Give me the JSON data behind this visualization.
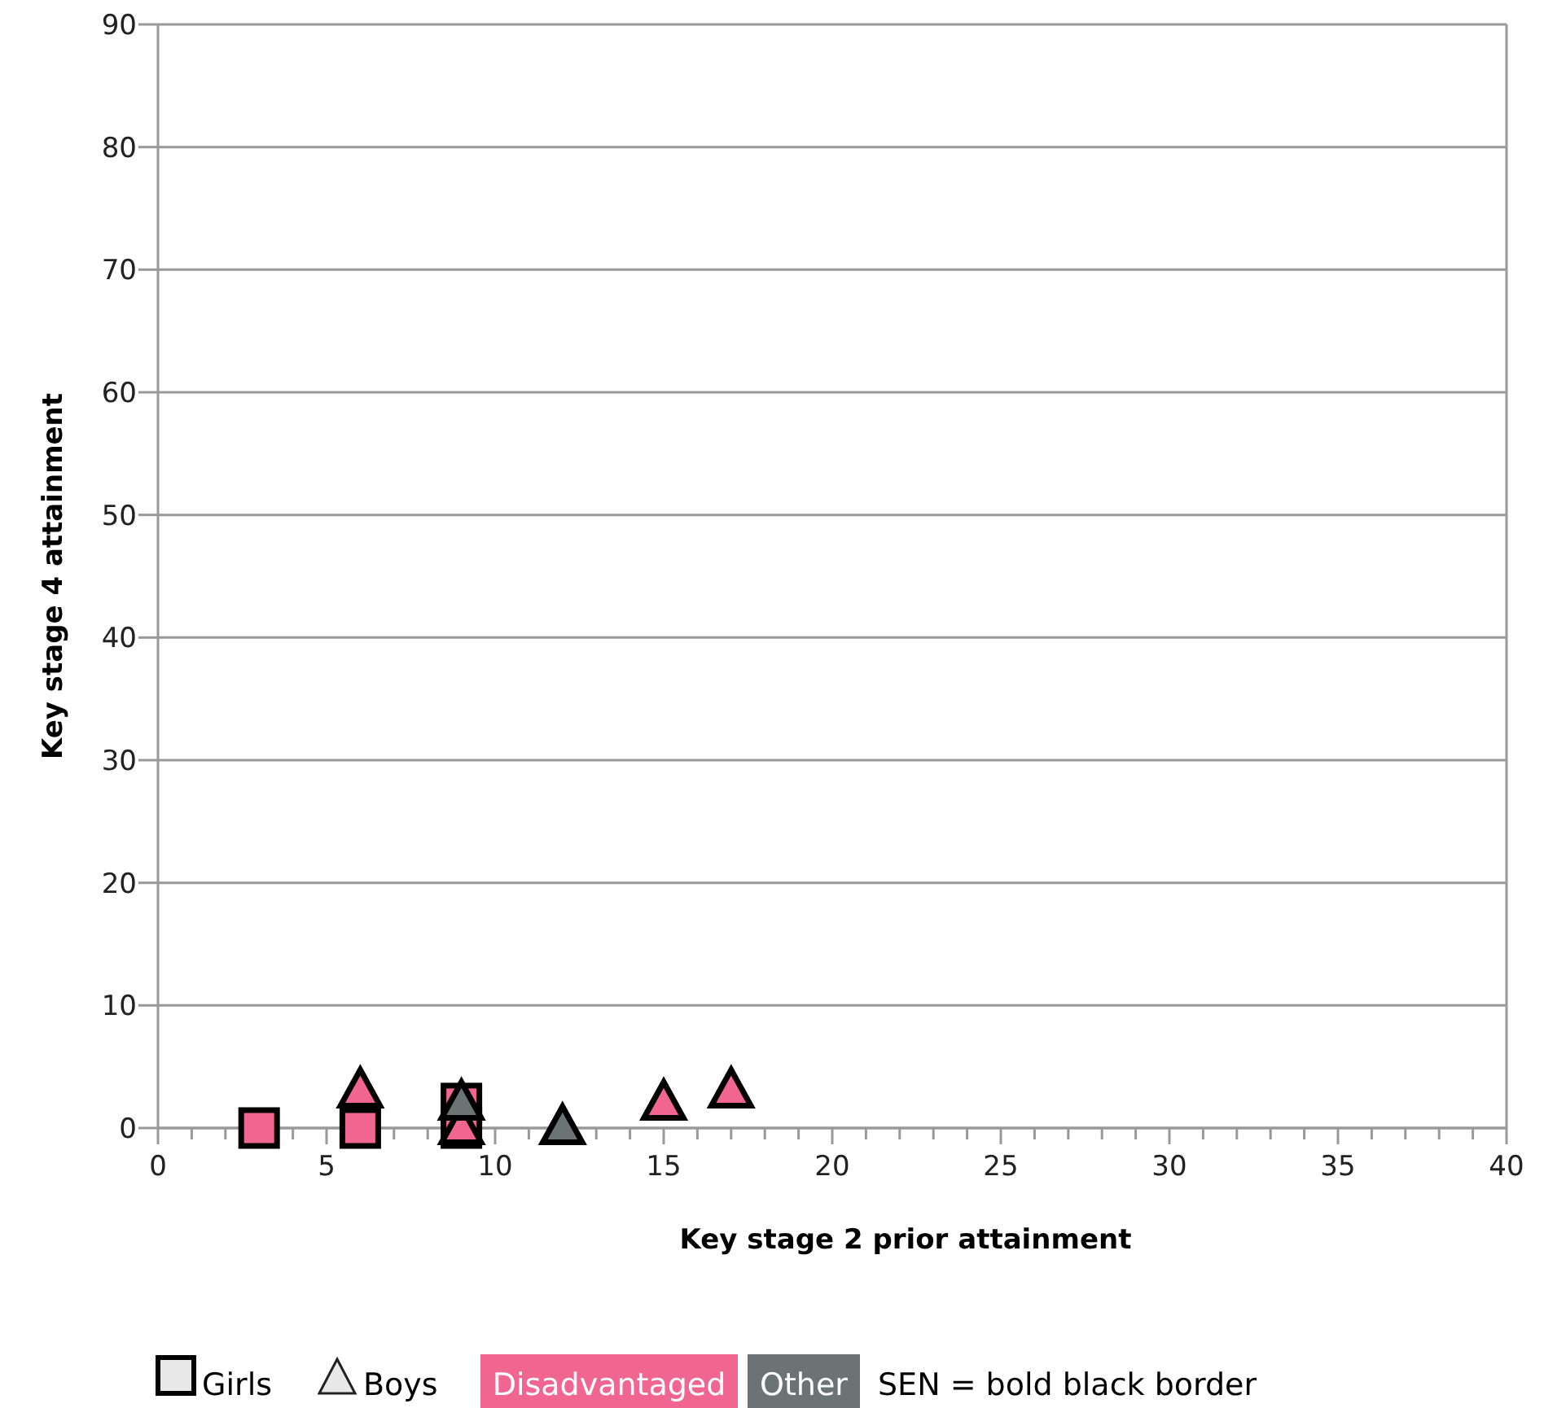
{
  "chart_data": {
    "type": "scatter",
    "xlabel": "Key stage 2 prior attainment",
    "ylabel": "Key stage 4 attainment",
    "xlim": [
      0,
      40
    ],
    "ylim": [
      0,
      90
    ],
    "xticks": [
      0,
      {
        "value": 1,
        "label": null
      },
      {
        "value": 2,
        "label": null
      },
      {
        "value": 3,
        "label": null
      },
      {
        "value": 4,
        "label": null
      },
      5,
      {
        "value": 6,
        "label": null
      },
      {
        "value": 7,
        "label": null
      },
      {
        "value": 8,
        "label": null
      },
      {
        "value": 9,
        "label": null
      },
      10,
      {
        "value": 11,
        "label": null
      },
      {
        "value": 12,
        "label": null
      },
      {
        "value": 13,
        "label": null
      },
      {
        "value": 14,
        "label": null
      },
      15,
      {
        "value": 16,
        "label": null
      },
      {
        "value": 17,
        "label": null
      },
      {
        "value": 18,
        "label": null
      },
      {
        "value": 19,
        "label": null
      },
      20,
      {
        "value": 21,
        "label": null
      },
      {
        "value": 22,
        "label": null
      },
      {
        "value": 23,
        "label": null
      },
      {
        "value": 24,
        "label": null
      },
      25,
      {
        "value": 26,
        "label": null
      },
      {
        "value": 27,
        "label": null
      },
      {
        "value": 28,
        "label": null
      },
      {
        "value": 29,
        "label": null
      },
      30,
      {
        "value": 31,
        "label": null
      },
      {
        "value": 32,
        "label": null
      },
      {
        "value": 33,
        "label": null
      },
      {
        "value": 34,
        "label": null
      },
      35,
      {
        "value": 36,
        "label": null
      },
      {
        "value": 37,
        "label": null
      },
      {
        "value": 38,
        "label": null
      },
      {
        "value": 39,
        "label": null
      },
      40
    ],
    "yticks": [
      0,
      10,
      20,
      30,
      40,
      50,
      60,
      70,
      80,
      90
    ],
    "grid": "y",
    "series": [
      {
        "color": "#f06690",
        "marker": "square",
        "x": [
          3,
          6,
          9,
          9
        ],
        "values": [
          0,
          0,
          2,
          0
        ]
      },
      {
        "color": "#f06690",
        "marker": "triangle",
        "x": [
          6,
          9,
          15,
          17
        ],
        "values": [
          3,
          0,
          2,
          3
        ]
      },
      {
        "color": "#6b7375",
        "marker": "triangle",
        "x": [
          9,
          12
        ],
        "values": [
          2,
          0
        ]
      }
    ],
    "annotations": [
      "Girls",
      "Boys",
      "Disadvantaged",
      "Other",
      "SEN = bold black border"
    ]
  }
}
